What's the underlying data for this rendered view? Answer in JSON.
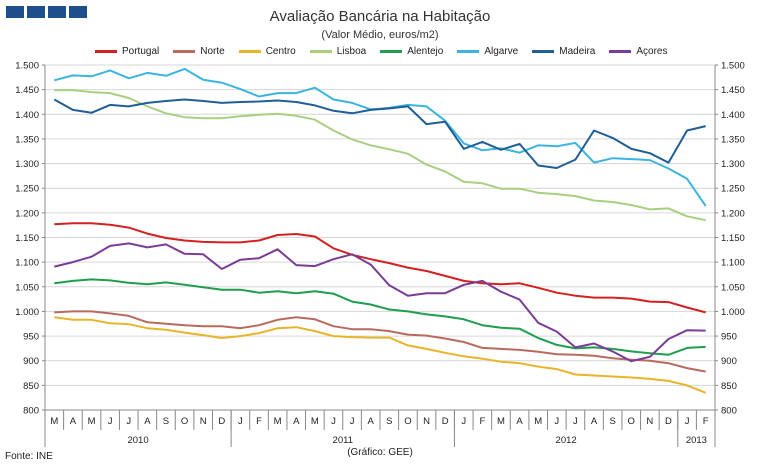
{
  "header": {
    "title": "Avaliação Bancária na Habitação",
    "subtitle": "(Valor Médio, euros/m2)",
    "source": "Fonte: INE",
    "credit": "(Gráfico: GEE)"
  },
  "colors": {
    "Portugal": "#d42020",
    "Norte": "#b86a5c",
    "Centro": "#e8b42a",
    "Lisboa": "#a8cf80",
    "Alentejo": "#1f9e4e",
    "Algarve": "#3cb4e0",
    "Madeira": "#1f5e96",
    "Açores": "#7a3c96"
  },
  "chart_data": {
    "type": "line",
    "title": "Avaliação Bancária na Habitação",
    "subtitle": "(Valor Médio, euros/m2)",
    "ylim": [
      800,
      1500
    ],
    "yticks": [
      "800",
      "850",
      "900",
      "950",
      "1.000",
      "1.050",
      "1.100",
      "1.150",
      "1.200",
      "1.250",
      "1.300",
      "1.350",
      "1.400",
      "1.450",
      "1.500"
    ],
    "categories": [
      "M",
      "A",
      "M",
      "J",
      "J",
      "A",
      "S",
      "O",
      "N",
      "D",
      "J",
      "F",
      "M",
      "A",
      "M",
      "J",
      "J",
      "A",
      "S",
      "O",
      "N",
      "D",
      "J",
      "F",
      "M",
      "A",
      "M",
      "J",
      "J",
      "A",
      "S",
      "O",
      "N",
      "D",
      "J",
      "F"
    ],
    "years": [
      {
        "label": "2010",
        "start": 0,
        "end": 9
      },
      {
        "label": "2011",
        "start": 10,
        "end": 21
      },
      {
        "label": "2012",
        "start": 22,
        "end": 33
      },
      {
        "label": "2013",
        "start": 34,
        "end": 35
      }
    ],
    "legend_position": "top",
    "series": [
      {
        "name": "Portugal",
        "values": [
          1177,
          1179,
          1179,
          1176,
          1170,
          1158,
          1149,
          1144,
          1141,
          1140,
          1140,
          1144,
          1155,
          1157,
          1152,
          1128,
          1115,
          1106,
          1098,
          1089,
          1082,
          1072,
          1062,
          1057,
          1055,
          1057,
          1048,
          1038,
          1032,
          1028,
          1028,
          1026,
          1020,
          1019,
          1008,
          998
        ]
      },
      {
        "name": "Norte",
        "values": [
          998,
          1000,
          1000,
          996,
          991,
          978,
          975,
          972,
          970,
          970,
          966,
          972,
          983,
          988,
          984,
          970,
          964,
          964,
          960,
          953,
          951,
          945,
          938,
          926,
          924,
          922,
          918,
          913,
          912,
          910,
          905,
          902,
          900,
          895,
          885,
          878
        ]
      },
      {
        "name": "Centro",
        "values": [
          988,
          983,
          983,
          976,
          974,
          966,
          963,
          957,
          952,
          946,
          950,
          956,
          966,
          968,
          960,
          950,
          948,
          947,
          947,
          931,
          924,
          916,
          909,
          904,
          898,
          895,
          888,
          883,
          872,
          870,
          868,
          866,
          863,
          859,
          850,
          835
        ]
      },
      {
        "name": "Lisboa",
        "values": [
          1449,
          1449,
          1445,
          1443,
          1433,
          1416,
          1402,
          1394,
          1392,
          1392,
          1396,
          1399,
          1401,
          1397,
          1389,
          1367,
          1349,
          1337,
          1329,
          1320,
          1298,
          1284,
          1263,
          1260,
          1249,
          1249,
          1241,
          1238,
          1234,
          1225,
          1222,
          1216,
          1207,
          1209,
          1193,
          1185
        ]
      },
      {
        "name": "Alentejo",
        "values": [
          1057,
          1062,
          1065,
          1063,
          1058,
          1055,
          1059,
          1054,
          1049,
          1044,
          1044,
          1038,
          1041,
          1037,
          1041,
          1036,
          1020,
          1014,
          1004,
          1000,
          994,
          990,
          984,
          972,
          967,
          965,
          946,
          932,
          925,
          927,
          924,
          919,
          915,
          912,
          926,
          928
        ]
      },
      {
        "name": "Algarve",
        "values": [
          1469,
          1479,
          1477,
          1489,
          1473,
          1484,
          1478,
          1492,
          1470,
          1464,
          1451,
          1436,
          1443,
          1443,
          1454,
          1430,
          1423,
          1410,
          1413,
          1419,
          1416,
          1387,
          1341,
          1327,
          1331,
          1322,
          1337,
          1335,
          1342,
          1302,
          1311,
          1309,
          1307,
          1290,
          1269,
          1214
        ]
      },
      {
        "name": "Madeira",
        "values": [
          1430,
          1409,
          1403,
          1419,
          1416,
          1423,
          1427,
          1430,
          1427,
          1423,
          1425,
          1426,
          1428,
          1425,
          1418,
          1407,
          1402,
          1409,
          1412,
          1416,
          1380,
          1385,
          1330,
          1344,
          1328,
          1340,
          1296,
          1291,
          1308,
          1367,
          1352,
          1330,
          1321,
          1302,
          1367,
          1376
        ]
      },
      {
        "name": "Açores",
        "values": [
          1091,
          1100,
          1111,
          1133,
          1138,
          1130,
          1136,
          1117,
          1116,
          1086,
          1105,
          1108,
          1126,
          1094,
          1092,
          1106,
          1116,
          1095,
          1053,
          1032,
          1037,
          1037,
          1054,
          1062,
          1040,
          1024,
          977,
          959,
          927,
          935,
          919,
          899,
          908,
          944,
          962,
          961
        ]
      }
    ]
  }
}
